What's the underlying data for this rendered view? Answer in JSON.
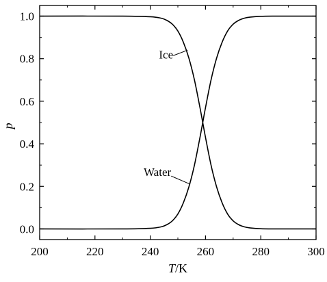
{
  "chart_data": {
    "type": "line",
    "xlabel_italic": "T",
    "xlabel_unit": "/K",
    "ylabel": "p",
    "xlim": [
      200,
      300
    ],
    "ylim": [
      -0.05,
      1.05
    ],
    "x_ticks": [
      200,
      220,
      240,
      260,
      280,
      300
    ],
    "x_tick_labels": [
      "200",
      "220",
      "240",
      "260",
      "280",
      "300"
    ],
    "y_ticks": [
      0.0,
      0.2,
      0.4,
      0.6,
      0.8,
      1.0
    ],
    "y_tick_labels": [
      "0.0",
      "0.2",
      "0.4",
      "0.6",
      "0.8",
      "1.0"
    ],
    "grid": false,
    "series": [
      {
        "name": "Ice",
        "x": [
          200,
          230,
          240,
          244,
          246,
          248,
          250,
          252,
          254,
          256,
          258,
          259,
          260,
          262,
          264,
          266,
          268,
          270,
          272,
          274,
          276,
          280,
          285,
          290,
          300
        ],
        "y": [
          1.0,
          1.0,
          0.997,
          0.99,
          0.98,
          0.962,
          0.93,
          0.877,
          0.802,
          0.7,
          0.57,
          0.5,
          0.43,
          0.3,
          0.198,
          0.123,
          0.07,
          0.038,
          0.02,
          0.01,
          0.005,
          0.001,
          0.0,
          0.0,
          0.0
        ]
      },
      {
        "name": "Water",
        "x": [
          200,
          230,
          240,
          244,
          246,
          248,
          250,
          252,
          254,
          256,
          258,
          259,
          260,
          262,
          264,
          266,
          268,
          270,
          272,
          274,
          276,
          280,
          285,
          290,
          300
        ],
        "y": [
          0.0,
          0.0,
          0.003,
          0.01,
          0.02,
          0.038,
          0.07,
          0.123,
          0.198,
          0.3,
          0.43,
          0.5,
          0.57,
          0.7,
          0.802,
          0.877,
          0.93,
          0.962,
          0.98,
          0.99,
          0.995,
          0.999,
          1.0,
          1.0,
          1.0
        ]
      }
    ],
    "annotations": [
      {
        "text": "Ice",
        "points_to": {
          "x": 253.5,
          "y": 0.84
        }
      },
      {
        "text": "Water",
        "points_to": {
          "x": 254.5,
          "y": 0.21
        }
      }
    ]
  }
}
